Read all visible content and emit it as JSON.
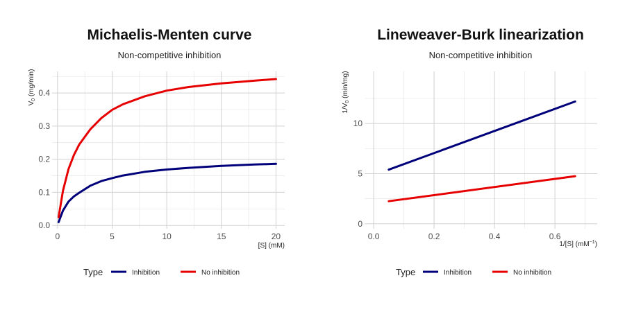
{
  "colors": {
    "inhibition": "#00007a",
    "no_inhibition": "#e60000"
  },
  "legend": {
    "title": "Type",
    "items": [
      "Inhibition",
      "No inhibition"
    ]
  },
  "chart_data": [
    {
      "type": "line",
      "title": "Michaelis-Menten curve",
      "subtitle": "Non-competitive inhibition",
      "xlabel": "[S] (mM)",
      "ylabel": "V0 (mg/min)",
      "xlim": [
        -0.5,
        20.8
      ],
      "ylim": [
        -0.01,
        0.465
      ],
      "xticks": [
        0,
        5,
        10,
        15,
        20
      ],
      "yticks": [
        0.0,
        0.1,
        0.2,
        0.3,
        0.4
      ],
      "ytick_labels": [
        "0.0",
        "0.1",
        "0.2",
        "0.3",
        "0.4"
      ],
      "grid": true,
      "legend_position": "bottom",
      "series": [
        {
          "name": "Inhibition",
          "color": "#00007a",
          "x": [
            0.1,
            0.5,
            1,
            1.5,
            2,
            3,
            4,
            5,
            6,
            8,
            10,
            12,
            15,
            18,
            20
          ],
          "y": [
            0.01,
            0.045,
            0.072,
            0.088,
            0.099,
            0.12,
            0.134,
            0.143,
            0.151,
            0.162,
            0.169,
            0.174,
            0.18,
            0.184,
            0.186
          ]
        },
        {
          "name": "No inhibition",
          "color": "#e60000",
          "x": [
            0.1,
            0.5,
            1,
            1.5,
            2,
            3,
            4,
            5,
            6,
            8,
            10,
            12,
            15,
            18,
            20
          ],
          "y": [
            0.025,
            0.105,
            0.17,
            0.213,
            0.245,
            0.29,
            0.324,
            0.349,
            0.366,
            0.39,
            0.407,
            0.418,
            0.429,
            0.437,
            0.442
          ]
        }
      ]
    },
    {
      "type": "line",
      "title": "Lineweaver-Burk linearization",
      "subtitle": "Non-competitive inhibition",
      "xlabel": "1/[S] (mM−1)",
      "ylabel": "1/V0 (min/mg)",
      "xlim": [
        -0.03,
        0.74
      ],
      "ylim": [
        -0.5,
        15.2
      ],
      "xticks": [
        0.0,
        0.2,
        0.4,
        0.6
      ],
      "xtick_labels": [
        "0.0",
        "0.2",
        "0.4",
        "0.6"
      ],
      "yticks": [
        0,
        5,
        10
      ],
      "grid": true,
      "legend_position": "bottom",
      "series": [
        {
          "name": "Inhibition",
          "color": "#00007a",
          "x": [
            0.05,
            0.667
          ],
          "y": [
            5.4,
            12.2
          ]
        },
        {
          "name": "No inhibition",
          "color": "#e60000",
          "x": [
            0.05,
            0.667
          ],
          "y": [
            2.25,
            4.75
          ]
        }
      ]
    }
  ]
}
